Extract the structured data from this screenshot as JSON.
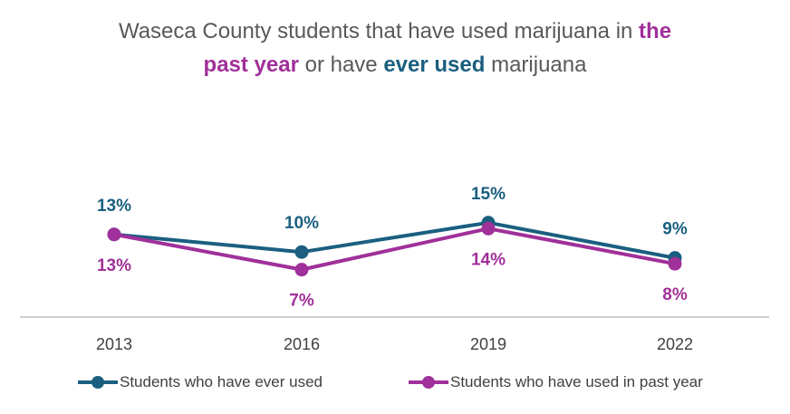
{
  "title": {
    "line1_prefix": "Waseca County students that have used marijuana in ",
    "line1_highlight": "the",
    "line2_highlight_past": "past year",
    "line2_mid": " or have ",
    "line2_highlight_ever": "ever used",
    "line2_suffix": " marijuana"
  },
  "colors": {
    "ever": "#1A5F80",
    "past": "#A0309A",
    "axis": "#BFBFBF",
    "tick": "#404040"
  },
  "chart_data": {
    "type": "line",
    "title": "Waseca County students that have used marijuana in the past year or have ever used marijuana",
    "categories": [
      "2013",
      "2016",
      "2019",
      "2022"
    ],
    "ylim": [
      0,
      20
    ],
    "grid": false,
    "legend_position": "bottom",
    "series": [
      {
        "name": "Students who have ever used",
        "key": "ever",
        "values": [
          13,
          10,
          15,
          9
        ],
        "labels": [
          "13%",
          "10%",
          "15%",
          "9%"
        ],
        "label_position": "above"
      },
      {
        "name": "Students who have used in past year",
        "key": "past",
        "values": [
          13,
          7,
          14,
          8
        ],
        "labels": [
          "13%",
          "7%",
          "14%",
          "8%"
        ],
        "label_position": "below"
      }
    ]
  }
}
